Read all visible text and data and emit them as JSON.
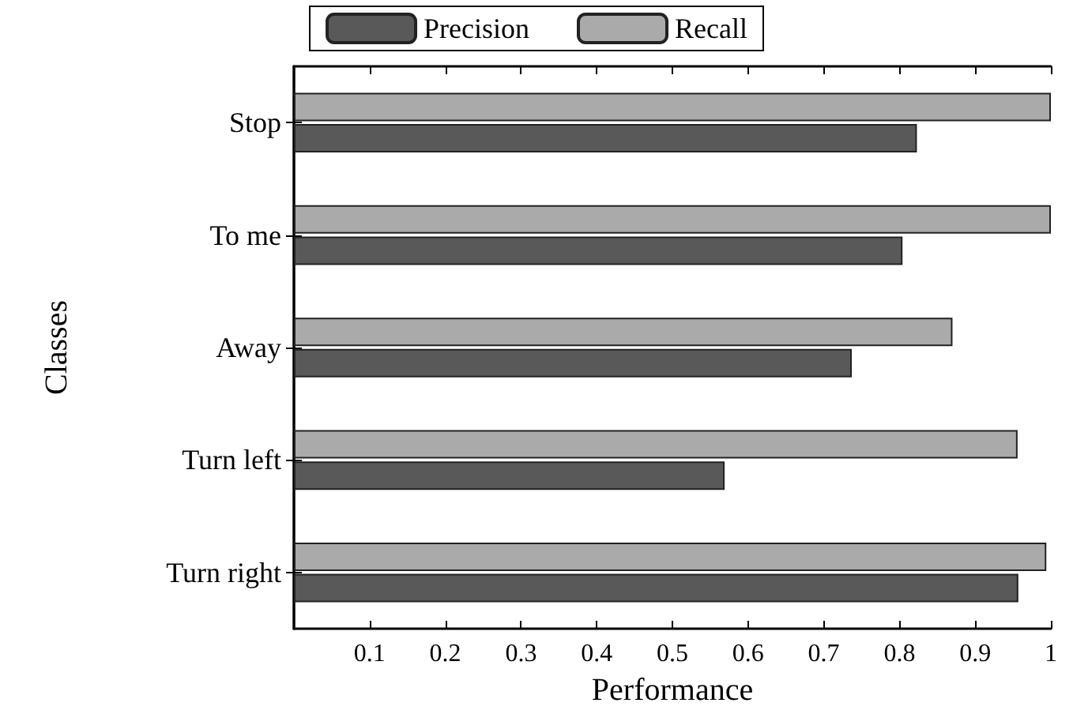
{
  "chart_data": {
    "type": "bar",
    "orientation": "horizontal",
    "xlabel": "Performance",
    "ylabel": "Classes",
    "categories": [
      "Stop",
      "To me",
      "Away",
      "Turn left",
      "Turn right"
    ],
    "series": [
      {
        "name": "Precision",
        "color": "#595959",
        "values": [
          0.823,
          0.804,
          0.737,
          0.569,
          0.957
        ]
      },
      {
        "name": "Recall",
        "color": "#aaaaaa",
        "values": [
          1.0,
          1.0,
          0.87,
          0.956,
          0.994
        ]
      }
    ],
    "xlim": [
      0,
      1
    ],
    "xticks": [
      0.1,
      0.2,
      0.3,
      0.4,
      0.5,
      0.6,
      0.7,
      0.8,
      0.9,
      1
    ],
    "grid": false,
    "legend": "top"
  }
}
